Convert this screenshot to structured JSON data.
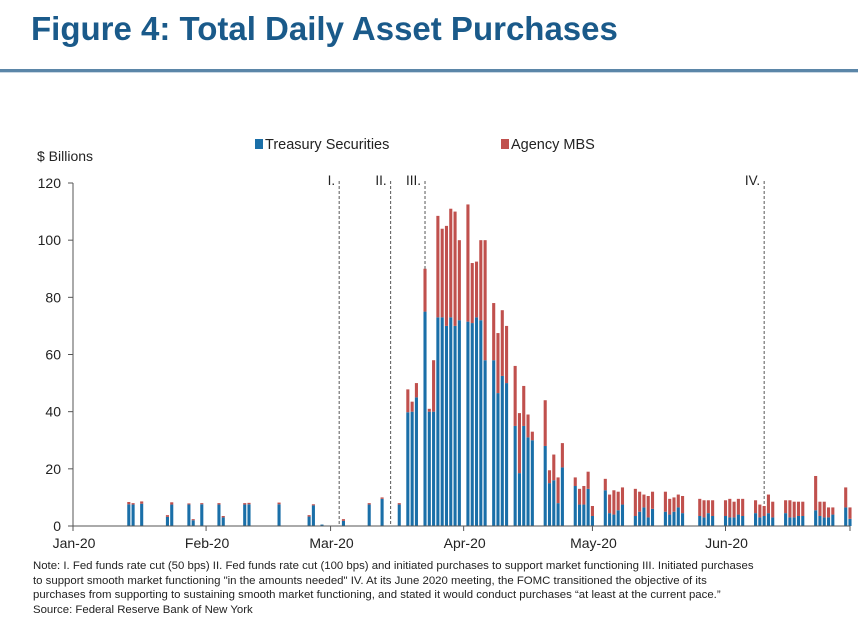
{
  "title": "Figure 4: Total Daily Asset Purchases",
  "notes": [
    "Note: I. Fed funds rate cut (50 bps) II. Fed funds rate cut (100 bps) and initiated purchases to support market functioning III. Initiated purchases",
    "to support smooth market functioning \"in the amounts needed\" IV. At its June 2020 meeting, the FOMC transitioned the objective of its",
    "purchases from supporting to sustaining smooth market functioning, and stated it would conduct purchases “at least at the current pace.”",
    "Source: Federal Reserve Bank of New York"
  ],
  "chart_data": {
    "type": "bar",
    "stacked": true,
    "ylabel": "$ Billions",
    "ylim": [
      0,
      120
    ],
    "yticks": [
      0,
      20,
      40,
      60,
      80,
      100,
      120
    ],
    "xtick_labels": [
      "Jan-20",
      "Feb-20",
      "Mar-20",
      "Apr-20",
      "May-20",
      "Jun-20"
    ],
    "xtick_dates": [
      "2020-01-01",
      "2020-02-01",
      "2020-03-01",
      "2020-04-01",
      "2020-05-01",
      "2020-06-01"
    ],
    "xrange": [
      "2020-01-01",
      "2020-06-30"
    ],
    "legend_position": "top-center",
    "colors": {
      "treasury": "#1a6fa8",
      "mbs": "#c0504d",
      "axis": "#555555",
      "events": "#444444"
    },
    "series": [
      {
        "name": "Treasury Securities",
        "key": "treasury"
      },
      {
        "name": "Agency MBS",
        "key": "mbs"
      }
    ],
    "event_lines": [
      {
        "label": "I.",
        "date": "2020-03-03"
      },
      {
        "label": "II.",
        "date": "2020-03-15"
      },
      {
        "label": "III.",
        "date": "2020-03-23"
      },
      {
        "label": "IV.",
        "date": "2020-06-10"
      }
    ],
    "bars": [
      [
        "2020-01-14",
        7.6,
        0.8
      ],
      [
        "2020-01-15",
        7.5,
        0.5
      ],
      [
        "2020-01-17",
        7.8,
        0.8
      ],
      [
        "2020-01-23",
        3.2,
        0.6
      ],
      [
        "2020-01-24",
        7.5,
        0.8
      ],
      [
        "2020-01-28",
        7.5,
        0.4
      ],
      [
        "2020-01-29",
        2.0,
        0.4
      ],
      [
        "2020-01-31",
        7.6,
        0.4
      ],
      [
        "2020-02-04",
        7.5,
        0.5
      ],
      [
        "2020-02-05",
        3.0,
        0.5
      ],
      [
        "2020-02-10",
        7.5,
        0.5
      ],
      [
        "2020-02-11",
        7.6,
        0.5
      ],
      [
        "2020-02-18",
        7.6,
        0.6
      ],
      [
        "2020-02-25",
        3.3,
        0.5
      ],
      [
        "2020-02-26",
        7.2,
        0.4
      ],
      [
        "2020-02-28",
        0.5,
        0.0
      ],
      [
        "2020-03-04",
        1.8,
        0.6
      ],
      [
        "2020-03-10",
        7.5,
        0.5
      ],
      [
        "2020-03-13",
        9.5,
        0.5
      ],
      [
        "2020-03-17",
        7.5,
        0.5
      ],
      [
        "2020-03-19",
        39.8,
        8.0
      ],
      [
        "2020-03-20",
        40.0,
        3.5
      ],
      [
        "2020-03-21",
        45.0,
        5.0
      ],
      [
        "2020-03-23",
        75.0,
        15.0
      ],
      [
        "2020-03-24",
        40.0,
        1.0
      ],
      [
        "2020-03-25",
        40.0,
        18.0
      ],
      [
        "2020-03-26",
        73.0,
        35.5
      ],
      [
        "2020-03-27",
        73.0,
        31.0
      ],
      [
        "2020-03-28",
        70.0,
        35.0
      ],
      [
        "2020-03-29",
        73.0,
        38.0
      ],
      [
        "2020-03-30",
        70.0,
        40.0
      ],
      [
        "2020-03-31",
        72.0,
        28.0
      ],
      [
        "2020-04-02",
        71.5,
        41.0
      ],
      [
        "2020-04-03",
        71.0,
        21.0
      ],
      [
        "2020-04-04",
        73.0,
        19.5
      ],
      [
        "2020-04-05",
        72.0,
        28.0
      ],
      [
        "2020-04-06",
        58.0,
        42.0
      ],
      [
        "2020-04-08",
        58.0,
        20.0
      ],
      [
        "2020-04-09",
        46.5,
        21.0
      ],
      [
        "2020-04-10",
        52.5,
        23.0
      ],
      [
        "2020-04-11",
        50.0,
        20.0
      ],
      [
        "2020-04-13",
        35.0,
        21.0
      ],
      [
        "2020-04-14",
        18.5,
        21.0
      ],
      [
        "2020-04-15",
        35.0,
        14.0
      ],
      [
        "2020-04-16",
        31.0,
        8.0
      ],
      [
        "2020-04-17",
        30.0,
        3.0
      ],
      [
        "2020-04-20",
        28.0,
        16.0
      ],
      [
        "2020-04-21",
        15.0,
        4.5
      ],
      [
        "2020-04-22",
        16.0,
        9.0
      ],
      [
        "2020-04-23",
        8.0,
        9.0
      ],
      [
        "2020-04-24",
        20.5,
        8.5
      ],
      [
        "2020-04-27",
        14.0,
        3.0
      ],
      [
        "2020-04-28",
        7.5,
        5.5
      ],
      [
        "2020-04-29",
        7.5,
        6.5
      ],
      [
        "2020-04-30",
        13.0,
        6.0
      ],
      [
        "2020-05-01",
        3.5,
        3.5
      ],
      [
        "2020-05-04",
        12.5,
        4.0
      ],
      [
        "2020-05-05",
        4.5,
        6.5
      ],
      [
        "2020-05-06",
        4.0,
        8.5
      ],
      [
        "2020-05-07",
        5.5,
        6.5
      ],
      [
        "2020-05-08",
        7.5,
        6.0
      ],
      [
        "2020-05-11",
        3.5,
        9.5
      ],
      [
        "2020-05-12",
        5.0,
        7.0
      ],
      [
        "2020-05-13",
        6.5,
        4.5
      ],
      [
        "2020-05-14",
        3.0,
        7.5
      ],
      [
        "2020-05-15",
        6.0,
        6.0
      ],
      [
        "2020-05-18",
        5.0,
        7.0
      ],
      [
        "2020-05-19",
        4.0,
        5.5
      ],
      [
        "2020-05-20",
        5.0,
        5.0
      ],
      [
        "2020-05-21",
        6.5,
        4.5
      ],
      [
        "2020-05-22",
        4.5,
        6.0
      ],
      [
        "2020-05-26",
        3.5,
        6.0
      ],
      [
        "2020-05-27",
        3.0,
        6.0
      ],
      [
        "2020-05-28",
        4.5,
        4.5
      ],
      [
        "2020-05-29",
        3.5,
        5.5
      ],
      [
        "2020-06-01",
        3.5,
        5.5
      ],
      [
        "2020-06-02",
        3.0,
        6.5
      ],
      [
        "2020-06-03",
        3.0,
        5.5
      ],
      [
        "2020-06-04",
        4.0,
        5.5
      ],
      [
        "2020-06-05",
        3.5,
        6.0
      ],
      [
        "2020-06-08",
        4.5,
        4.5
      ],
      [
        "2020-06-09",
        3.0,
        4.5
      ],
      [
        "2020-06-10",
        3.5,
        3.5
      ],
      [
        "2020-06-11",
        4.5,
        6.5
      ],
      [
        "2020-06-12",
        3.0,
        5.5
      ],
      [
        "2020-06-15",
        4.5,
        4.5
      ],
      [
        "2020-06-16",
        3.0,
        6.0
      ],
      [
        "2020-06-17",
        3.0,
        5.5
      ],
      [
        "2020-06-18",
        3.5,
        5.0
      ],
      [
        "2020-06-19",
        3.5,
        5.0
      ],
      [
        "2020-06-22",
        5.5,
        12.0
      ],
      [
        "2020-06-23",
        3.5,
        5.0
      ],
      [
        "2020-06-24",
        3.0,
        5.5
      ],
      [
        "2020-06-25",
        3.0,
        3.5
      ],
      [
        "2020-06-26",
        4.0,
        2.5
      ],
      [
        "2020-06-29",
        6.5,
        7.0
      ],
      [
        "2020-06-30",
        2.5,
        4.0
      ]
    ]
  }
}
